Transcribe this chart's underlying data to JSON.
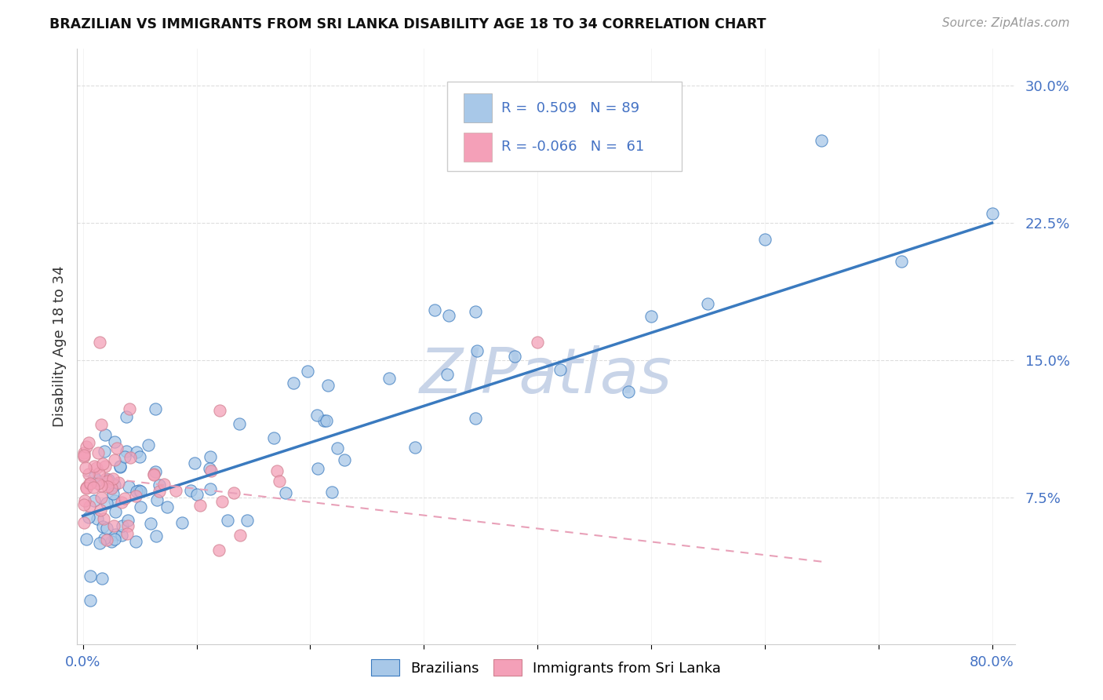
{
  "title": "BRAZILIAN VS IMMIGRANTS FROM SRI LANKA DISABILITY AGE 18 TO 34 CORRELATION CHART",
  "source_text": "Source: ZipAtlas.com",
  "ylabel": "Disability Age 18 to 34",
  "xlim": [
    -0.005,
    0.82
  ],
  "ylim": [
    -0.005,
    0.32
  ],
  "xtick_positions": [
    0.0,
    0.1,
    0.2,
    0.3,
    0.4,
    0.5,
    0.6,
    0.7,
    0.8
  ],
  "xticklabels": [
    "0.0%",
    "",
    "",
    "",
    "",
    "",
    "",
    "",
    "80.0%"
  ],
  "ytick_positions": [
    0.075,
    0.15,
    0.225,
    0.3
  ],
  "yticklabels": [
    "7.5%",
    "15.0%",
    "22.5%",
    "30.0%"
  ],
  "blue_color": "#a8c8e8",
  "pink_color": "#f4a0b8",
  "blue_line_color": "#3a7abf",
  "pink_line_color": "#e8a0b8",
  "watermark_color": "#c8d4e8",
  "R_blue": 0.509,
  "N_blue": 89,
  "R_pink": -0.066,
  "N_pink": 61,
  "legend_label_blue": "Brazilians",
  "legend_label_pink": "Immigrants from Sri Lanka",
  "blue_trend_x": [
    0.0,
    0.8
  ],
  "blue_trend_y": [
    0.065,
    0.225
  ],
  "pink_trend_x": [
    0.0,
    0.65
  ],
  "pink_trend_y": [
    0.087,
    0.04
  ],
  "bg_color": "#ffffff",
  "grid_color": "#dddddd"
}
